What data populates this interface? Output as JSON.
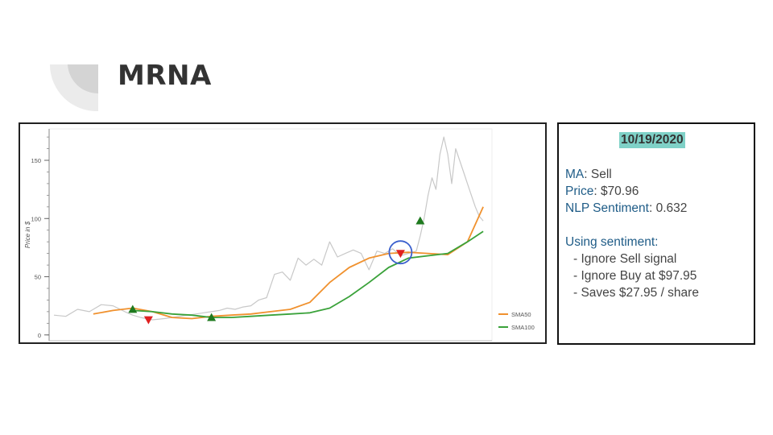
{
  "page": {
    "title": "MRNA"
  },
  "info": {
    "date": "10/19/2020",
    "ma_label": "MA",
    "ma_value": ": Sell",
    "price_label": "Price",
    "price_value": ": $70.96",
    "nlp_label": "NLP Sentiment",
    "nlp_value": ": 0.632",
    "using_label": "Using sentiment",
    "using_colon": ":",
    "bullets": [
      "-  Ignore Sell signal",
      "-  Ignore Buy at $97.95",
      "-  Saves $27.95 / share"
    ]
  },
  "chart_data": {
    "type": "line",
    "title": "",
    "xlabel": "",
    "ylabel": "Price in $",
    "ylim": [
      -5,
      177
    ],
    "yticks": [
      0,
      50,
      100,
      150
    ],
    "legend_position": "bottom-right",
    "grid": false,
    "series": [
      {
        "name": "",
        "color": "#c8c8c8",
        "x": [
          0,
          3,
          6,
          9,
          12,
          15,
          18,
          20,
          22,
          25,
          28,
          30,
          32,
          34,
          36,
          38,
          40,
          42,
          44,
          46,
          48,
          50,
          52,
          54,
          56,
          58,
          60,
          62,
          64,
          66,
          68,
          70,
          72,
          74,
          76,
          78,
          80,
          82,
          84,
          86,
          88,
          90,
          92,
          93,
          94,
          95,
          96,
          97,
          98,
          99,
          100,
          101,
          102,
          103,
          104,
          105,
          106,
          107,
          108,
          109
        ],
        "y": [
          17,
          16,
          22,
          20,
          26,
          25,
          20,
          17,
          15,
          13,
          14,
          15,
          16,
          17,
          18,
          19,
          20,
          21,
          23,
          22,
          24,
          25,
          30,
          32,
          52,
          54,
          47,
          66,
          60,
          65,
          60,
          80,
          67,
          70,
          73,
          70,
          56,
          72,
          70,
          74,
          68,
          70,
          72,
          85,
          100,
          120,
          135,
          125,
          155,
          170,
          155,
          130,
          160,
          150,
          140,
          130,
          120,
          110,
          102,
          98
        ],
        "values_note": ""
      },
      {
        "name": "SMA50",
        "color": "#f0912e",
        "x": [
          10,
          15,
          20,
          25,
          30,
          35,
          40,
          45,
          50,
          55,
          60,
          65,
          70,
          75,
          80,
          85,
          90,
          95,
          100,
          105,
          109
        ],
        "y": [
          18,
          21,
          23,
          20,
          15,
          14,
          16,
          17,
          18,
          20,
          22,
          28,
          45,
          58,
          66,
          70,
          71,
          70,
          69,
          80,
          110
        ]
      },
      {
        "name": "SMA100",
        "color": "#3aa23a",
        "x": [
          20,
          25,
          30,
          35,
          40,
          45,
          50,
          55,
          60,
          65,
          70,
          75,
          80,
          85,
          90,
          95,
          100,
          105,
          109
        ],
        "y": [
          21,
          20,
          18,
          17,
          15,
          15,
          16,
          17,
          18,
          19,
          23,
          33,
          45,
          58,
          66,
          68,
          70,
          80,
          89
        ]
      }
    ],
    "markers": [
      {
        "type": "buy",
        "x": 20,
        "y": 22,
        "color": "#1f7a1f"
      },
      {
        "type": "sell",
        "x": 24,
        "y": 13,
        "color": "#e02020"
      },
      {
        "type": "buy",
        "x": 40,
        "y": 15,
        "color": "#1f7a1f"
      },
      {
        "type": "sell",
        "x": 88,
        "y": 70,
        "color": "#e02020"
      },
      {
        "type": "buy",
        "x": 93,
        "y": 98,
        "color": "#1f7a1f"
      }
    ],
    "highlight": {
      "x": 88,
      "y": 71,
      "color": "#3a5fcd"
    }
  }
}
